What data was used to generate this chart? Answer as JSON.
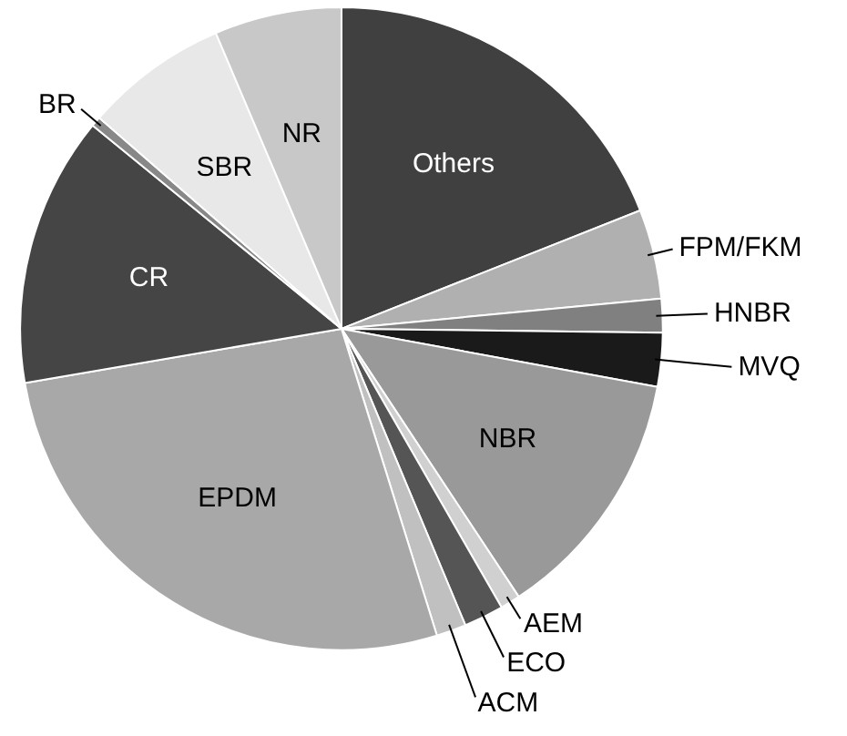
{
  "chart_data": {
    "type": "pie",
    "categories": [
      "Others",
      "FPM/FKM",
      "HNBR",
      "MVQ",
      "NBR",
      "AEM",
      "ECO",
      "ACM",
      "EPDM",
      "CR",
      "BR",
      "SBR",
      "NR"
    ],
    "values": [
      19,
      4.5,
      1.7,
      2.7,
      12.8,
      1,
      2,
      1.5,
      27.1,
      13.6,
      0.5,
      7.2,
      6.4
    ],
    "colors": [
      "#404040",
      "#b0b0b0",
      "#808080",
      "#1a1a1a",
      "#999999",
      "#d0d0d0",
      "#555555",
      "#c0c0c0",
      "#a8a8a8",
      "#454545",
      "#888888",
      "#e8e8e8",
      "#c8c8c8"
    ]
  }
}
